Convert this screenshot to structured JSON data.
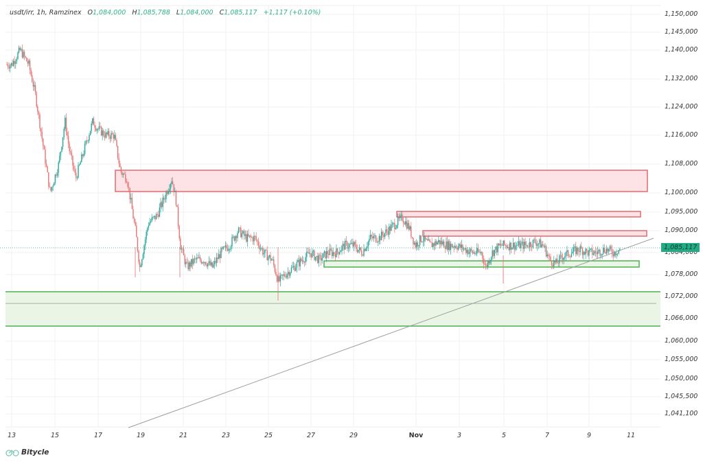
{
  "header": {
    "symbol": "usdt/irr, 1h, Ramzinex",
    "open_label": "O",
    "open": "1,084,000",
    "high_label": "H",
    "high": "1,085,788",
    "low_label": "L",
    "low": "1,084,000",
    "close_label": "C",
    "close": "1,085,117",
    "change": "+1,117 (+0.10%)"
  },
  "last_price_tag": "1,085,117",
  "brand": {
    "name": "Bitycle",
    "icon": "bicycle-icon"
  },
  "colors": {
    "up": "#26a69a",
    "down": "#e57373",
    "resistance_fill": "#fde3e5",
    "resistance_stroke": "#e06a72",
    "support_fill": "#eaf5e6",
    "support_stroke": "#4caf50",
    "trendline": "#9e9e9e",
    "grid": "#f0f0f0",
    "last_price": "#22ab84"
  },
  "chart_data": {
    "type": "candlestick",
    "title": "usdt/irr, 1h, Ramzinex",
    "xlabel": "",
    "ylabel": "",
    "x_ticks": [
      "13",
      "15",
      "17",
      "19",
      "21",
      "23",
      "25",
      "27",
      "29",
      "Nov",
      "3",
      "5",
      "7",
      "9",
      "11"
    ],
    "y_ticks": [
      "1,150,000",
      "1,145,000",
      "1,140,000",
      "1,132,000",
      "1,124,000",
      "1,116,000",
      "1,108,000",
      "1,100,000",
      "1,095,000",
      "1,090,000",
      "1,084,000",
      "1,078,000",
      "1,072,000",
      "1,066,000",
      "1,060,000",
      "1,055,000",
      "1,050,000",
      "1,045,500",
      "1,041,100"
    ],
    "ylim": [
      1038000,
      1152000
    ],
    "grid": true,
    "last_price": 1085117,
    "ohlc_last": {
      "open": 1084000,
      "high": 1085788,
      "low": 1084000,
      "close": 1085117
    },
    "price_path": [
      [
        13,
        1136000
      ],
      [
        13.4,
        1140000
      ],
      [
        13.8,
        1136000
      ],
      [
        14.1,
        1128000
      ],
      [
        14.5,
        1112000
      ],
      [
        14.8,
        1100000
      ],
      [
        15.2,
        1108000
      ],
      [
        15.5,
        1120000
      ],
      [
        15.7,
        1112000
      ],
      [
        16,
        1104000
      ],
      [
        16.4,
        1112000
      ],
      [
        16.8,
        1120000
      ],
      [
        17,
        1118000
      ],
      [
        17.4,
        1116000
      ],
      [
        17.8,
        1116000
      ],
      [
        18.1,
        1106000
      ],
      [
        18.4,
        1104000
      ],
      [
        18.8,
        1090000
      ],
      [
        19,
        1080000
      ],
      [
        19.4,
        1092000
      ],
      [
        19.8,
        1094000
      ],
      [
        20.1,
        1098000
      ],
      [
        20.5,
        1104000
      ],
      [
        20.7,
        1098000
      ],
      [
        20.9,
        1086000
      ],
      [
        21.2,
        1080000
      ],
      [
        21.6,
        1082000
      ],
      [
        22,
        1082000
      ],
      [
        22.4,
        1080000
      ],
      [
        22.8,
        1084000
      ],
      [
        23.2,
        1086000
      ],
      [
        23.6,
        1090000
      ],
      [
        24,
        1088000
      ],
      [
        24.4,
        1088000
      ],
      [
        24.8,
        1084000
      ],
      [
        25.2,
        1082000
      ],
      [
        25.5,
        1076000
      ],
      [
        25.8,
        1078000
      ],
      [
        26.2,
        1080000
      ],
      [
        26.6,
        1082000
      ],
      [
        27,
        1084000
      ],
      [
        27.4,
        1082000
      ],
      [
        27.8,
        1084000
      ],
      [
        28.2,
        1084000
      ],
      [
        28.6,
        1086000
      ],
      [
        29,
        1086000
      ],
      [
        29.4,
        1084000
      ],
      [
        29.8,
        1088000
      ],
      [
        30.2,
        1088000
      ],
      [
        30.6,
        1090000
      ],
      [
        31,
        1092000
      ],
      [
        31.3,
        1093500
      ],
      [
        31.6,
        1091000
      ],
      [
        31.9,
        1086000
      ],
      [
        32.2,
        1088000
      ],
      [
        32.6,
        1086000
      ],
      [
        33,
        1087000
      ],
      [
        33.4,
        1086000
      ],
      [
        33.8,
        1086000
      ],
      [
        34.2,
        1085000
      ],
      [
        34.6,
        1084000
      ],
      [
        35,
        1084000
      ],
      [
        35.2,
        1080000
      ],
      [
        35.5,
        1084000
      ],
      [
        35.9,
        1086000
      ],
      [
        36.3,
        1086000
      ],
      [
        36.7,
        1086000
      ],
      [
        37.1,
        1086000
      ],
      [
        37.5,
        1087000
      ],
      [
        37.9,
        1086000
      ],
      [
        38.2,
        1082000
      ],
      [
        38.5,
        1081000
      ],
      [
        38.8,
        1083000
      ],
      [
        39.2,
        1084000
      ],
      [
        39.6,
        1085000
      ],
      [
        40,
        1084000
      ],
      [
        40.4,
        1084000
      ],
      [
        40.8,
        1085000
      ],
      [
        41.2,
        1084000
      ],
      [
        41.5,
        1085117
      ]
    ],
    "annotations": [
      {
        "type": "resistance_zone",
        "from_x": "18",
        "to_x": "11+",
        "price_top": 1106000,
        "price_bottom": 1100500
      },
      {
        "type": "resistance_zone",
        "from_x": "31",
        "to_x": "11",
        "price_top": 1094500,
        "price_bottom": 1093000
      },
      {
        "type": "resistance_zone",
        "from_x": "Nov 1",
        "to_x": "11+",
        "price_top": 1089000,
        "price_bottom": 1087700
      },
      {
        "type": "support_zone",
        "from_x": "27",
        "to_x": "11",
        "price_top": 1081500,
        "price_bottom": 1080000
      },
      {
        "type": "support_zone",
        "from_x": "12",
        "to_x": "11+",
        "price_top": 1073000,
        "price_bottom": 1064000
      },
      {
        "type": "horizontal_line",
        "price": 1070500
      },
      {
        "type": "trendline",
        "from": [
          "18.5",
          1039000
        ],
        "to": [
          "11.5",
          1087000
        ]
      }
    ]
  }
}
